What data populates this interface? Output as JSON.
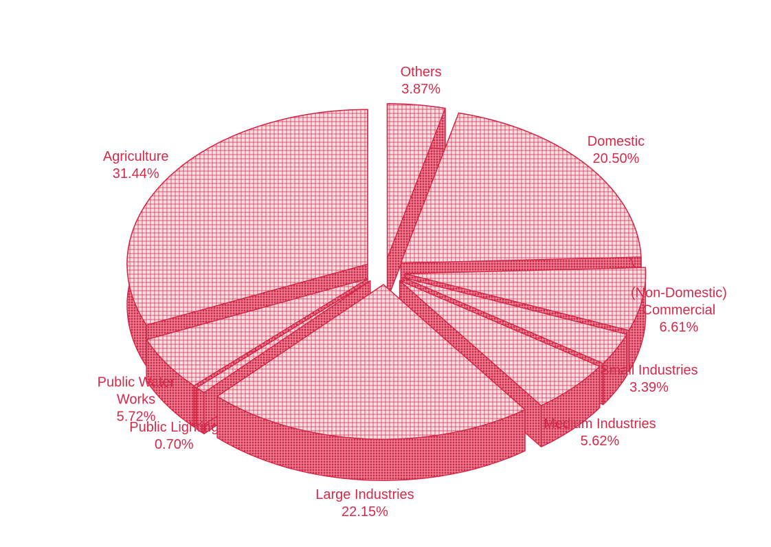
{
  "chart_data": {
    "type": "pie",
    "categories": [
      "Others",
      "Domestic",
      "(Non-Domestic) Commercial",
      "Small Industries",
      "Medium Industries",
      "Large Industries",
      "Public Lighting",
      "Public Water Works",
      "Agriculture"
    ],
    "values": [
      3.87,
      20.5,
      6.61,
      3.39,
      5.62,
      22.15,
      0.7,
      5.72,
      31.44
    ],
    "value_labels": [
      "3.87%",
      "20.50%",
      "6.61%",
      "3.39%",
      "5.62%",
      "22.15%",
      "0.70%",
      "5.72%",
      "31.44%"
    ],
    "color": "#d42a4a"
  }
}
